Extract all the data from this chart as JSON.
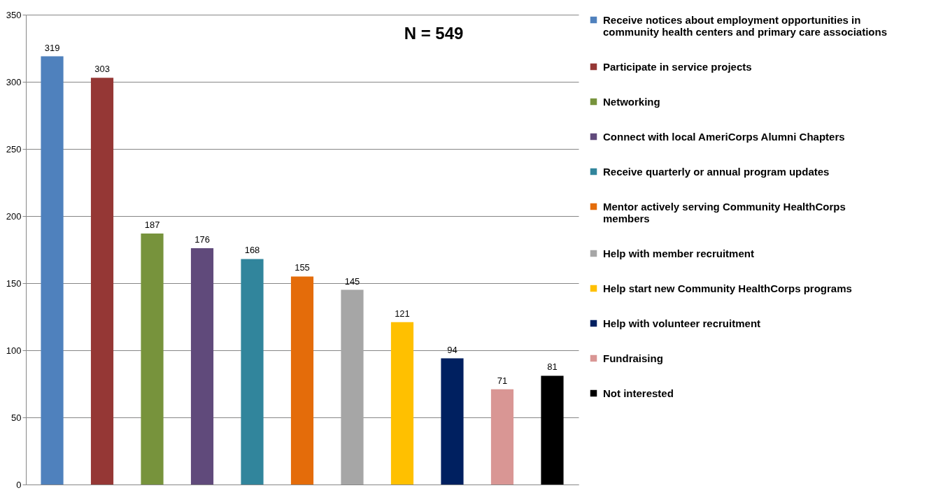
{
  "chart_data": {
    "type": "bar",
    "categories": [
      null,
      null,
      null,
      null,
      null,
      null,
      null,
      null,
      null,
      null,
      null
    ],
    "series": [
      {
        "name": "Receive notices about employment opportunities in community health centers and primary care associations",
        "color": "#4f81bd",
        "values": [
          319,
          null,
          null,
          null,
          null,
          null,
          null,
          null,
          null,
          null,
          null
        ]
      },
      {
        "name": "Participate in  service projects",
        "color": "#953735",
        "values": [
          null,
          303,
          null,
          null,
          null,
          null,
          null,
          null,
          null,
          null,
          null
        ]
      },
      {
        "name": "Networking",
        "color": "#77933c",
        "values": [
          null,
          null,
          187,
          null,
          null,
          null,
          null,
          null,
          null,
          null,
          null
        ]
      },
      {
        "name": "Connect with local AmeriCorps Alumni Chapters",
        "color": "#604a7b",
        "values": [
          null,
          null,
          null,
          176,
          null,
          null,
          null,
          null,
          null,
          null,
          null
        ]
      },
      {
        "name": "Receive quarterly or annual program updates",
        "color": "#31859c",
        "values": [
          null,
          null,
          null,
          null,
          168,
          null,
          null,
          null,
          null,
          null,
          null
        ]
      },
      {
        "name": "Mentor actively serving Community HealthCorps members",
        "color": "#e46c0a",
        "values": [
          null,
          null,
          null,
          null,
          null,
          155,
          null,
          null,
          null,
          null,
          null
        ]
      },
      {
        "name": "Help with member recruitment",
        "color": "#a6a6a6",
        "values": [
          null,
          null,
          null,
          null,
          null,
          null,
          145,
          null,
          null,
          null,
          null
        ]
      },
      {
        "name": "Help start new Community HealthCorps programs",
        "color": "#ffc000",
        "values": [
          null,
          null,
          null,
          null,
          null,
          null,
          null,
          121,
          null,
          null,
          null
        ]
      },
      {
        "name": "Help with volunteer recruitment",
        "color": "#002060",
        "values": [
          null,
          null,
          null,
          null,
          null,
          null,
          null,
          null,
          94,
          null,
          null
        ]
      },
      {
        "name": "Fundraising",
        "color": "#d99694",
        "values": [
          null,
          null,
          null,
          null,
          null,
          null,
          null,
          null,
          null,
          71,
          null
        ]
      },
      {
        "name": "Not interested",
        "color": "#000000",
        "values": [
          null,
          null,
          null,
          null,
          null,
          null,
          null,
          null,
          null,
          null,
          81
        ]
      }
    ],
    "ylim": [
      0,
      350
    ],
    "yticks": [
      0,
      50,
      100,
      150,
      200,
      250,
      300,
      350
    ],
    "grid": "y",
    "legend": "right",
    "tick_labels": "y",
    "data_labels": true,
    "annotations": [
      "N = 549"
    ]
  }
}
